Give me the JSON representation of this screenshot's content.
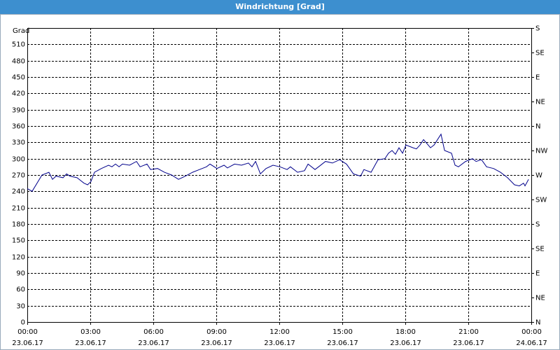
{
  "chart_data": {
    "type": "line",
    "title": "Windrichtung [Grad]",
    "ylabel": "Grad",
    "xlim": [
      0,
      24
    ],
    "xticks": [
      {
        "value": 0,
        "label": "00:00"
      },
      {
        "value": 3,
        "label": "03:00"
      },
      {
        "value": 6,
        "label": "06:00"
      },
      {
        "value": 9,
        "label": "09:00"
      },
      {
        "value": 12,
        "label": "12:00"
      },
      {
        "value": 15,
        "label": "15:00"
      },
      {
        "value": 18,
        "label": "18:00"
      },
      {
        "value": 21,
        "label": "21:00"
      },
      {
        "value": 24,
        "label": "00:00"
      }
    ],
    "xtick_dates": [
      "23.06.17",
      "23.06.17",
      "23.06.17",
      "23.06.17",
      "23.06.17",
      "23.06.17",
      "23.06.17",
      "23.06.17",
      "24.06.17"
    ],
    "ylim": [
      0,
      540
    ],
    "yticks": [
      0,
      30,
      60,
      90,
      120,
      150,
      180,
      210,
      240,
      270,
      300,
      330,
      360,
      390,
      420,
      450,
      480,
      510
    ],
    "y2lim": [
      0,
      540
    ],
    "y2ticks": [
      {
        "value": 0,
        "label": "N"
      },
      {
        "value": 45,
        "label": "NE"
      },
      {
        "value": 90,
        "label": "E"
      },
      {
        "value": 135,
        "label": "SE"
      },
      {
        "value": 180,
        "label": "S"
      },
      {
        "value": 225,
        "label": "SW"
      },
      {
        "value": 270,
        "label": "W"
      },
      {
        "value": 315,
        "label": "NW"
      },
      {
        "value": 360,
        "label": "N"
      },
      {
        "value": 405,
        "label": "NE"
      },
      {
        "value": 450,
        "label": "E"
      },
      {
        "value": 495,
        "label": "SE"
      },
      {
        "value": 540,
        "label": "S"
      }
    ],
    "grid": true,
    "series": [
      {
        "color": "#00008b",
        "x": [
          0,
          0.23,
          0.7,
          1.03,
          1.2,
          1.37,
          1.7,
          1.87,
          2.03,
          2.37,
          2.7,
          2.87,
          3.03,
          3.2,
          3.53,
          3.87,
          4.03,
          4.2,
          4.37,
          4.53,
          4.87,
          5.2,
          5.37,
          5.7,
          5.87,
          6.2,
          6.53,
          6.87,
          7.2,
          7.53,
          7.87,
          8.2,
          8.53,
          8.7,
          9.03,
          9.37,
          9.53,
          9.87,
          10.2,
          10.53,
          10.7,
          10.87,
          11.1,
          11.37,
          11.7,
          12.03,
          12.37,
          12.53,
          12.87,
          13.2,
          13.37,
          13.7,
          13.87,
          14.2,
          14.53,
          14.87,
          15.2,
          15.53,
          15.87,
          16.03,
          16.37,
          16.7,
          17.03,
          17.2,
          17.37,
          17.53,
          17.7,
          17.87,
          18.03,
          18.37,
          18.53,
          18.7,
          18.87,
          19.2,
          19.37,
          19.7,
          19.87,
          20.2,
          20.37,
          20.53,
          20.87,
          21.2,
          21.37,
          21.63,
          21.87,
          22.2,
          22.53,
          22.87,
          23.2,
          23.43,
          23.63,
          23.7,
          23.87
        ],
        "values": [
          245,
          240,
          270,
          275,
          262,
          268,
          265,
          272,
          268,
          265,
          255,
          252,
          258,
          275,
          282,
          288,
          285,
          290,
          285,
          290,
          288,
          295,
          285,
          290,
          280,
          282,
          275,
          270,
          262,
          268,
          275,
          280,
          285,
          290,
          282,
          288,
          283,
          290,
          288,
          292,
          285,
          295,
          272,
          282,
          288,
          285,
          280,
          285,
          275,
          278,
          290,
          280,
          285,
          295,
          292,
          298,
          290,
          272,
          268,
          280,
          275,
          298,
          300,
          310,
          315,
          308,
          320,
          310,
          325,
          320,
          318,
          325,
          335,
          320,
          325,
          345,
          315,
          310,
          288,
          285,
          295,
          300,
          295,
          298,
          285,
          282,
          275,
          265,
          252,
          250,
          255,
          250,
          262
        ]
      }
    ]
  }
}
